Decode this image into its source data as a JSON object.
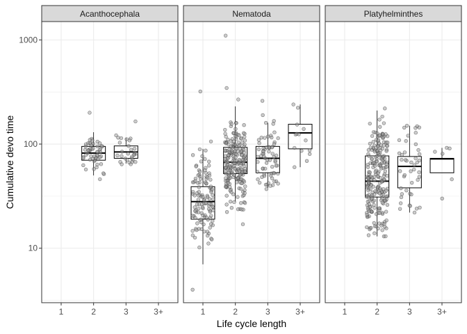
{
  "chart_data": {
    "type": "box",
    "xlabel": "Life cycle length",
    "ylabel": "Cumulative devo time",
    "y_scale": "log10",
    "ylim": [
      3,
      1500
    ],
    "y_ticks": [
      10,
      100,
      1000
    ],
    "y_tick_labels": [
      "10",
      "100",
      "1000"
    ],
    "categories": [
      "1",
      "2",
      "3",
      "3+"
    ],
    "grid": true,
    "colors": {
      "point_fill": "#999999",
      "point_stroke": "#333333",
      "box_stroke": "#000000",
      "strip_fill": "#d9d9d9",
      "grid": "#ebebeb",
      "panel_border": "#333333"
    },
    "panels": [
      {
        "name": "Acanthocephala",
        "boxes": [
          {
            "category": "2",
            "q1": 70,
            "median": 82,
            "q3": 95,
            "whisker_low": 50,
            "whisker_high": 130,
            "n": 55,
            "min": 46,
            "max": 200
          },
          {
            "category": "3",
            "q1": 73,
            "median": 84,
            "q3": 96,
            "whisker_low": 65,
            "whisker_high": 115,
            "n": 30,
            "min": 64,
            "max": 165
          }
        ]
      },
      {
        "name": "Nematoda",
        "boxes": [
          {
            "category": "1",
            "q1": 19,
            "median": 28,
            "q3": 39,
            "whisker_low": 7,
            "whisker_high": 90,
            "n": 120,
            "min": 4,
            "max": 320
          },
          {
            "category": "2",
            "q1": 52,
            "median": 67,
            "q3": 93,
            "whisker_low": 28,
            "whisker_high": 230,
            "n": 220,
            "min": 17,
            "max": 1100
          },
          {
            "category": "3",
            "q1": 53,
            "median": 73,
            "q3": 95,
            "whisker_low": 38,
            "whisker_high": 160,
            "n": 70,
            "min": 37,
            "max": 260
          },
          {
            "category": "3+",
            "q1": 90,
            "median": 128,
            "q3": 155,
            "whisker_low": 60,
            "whisker_high": 240,
            "n": 14,
            "min": 60,
            "max": 240
          }
        ]
      },
      {
        "name": "Platyhelminthes",
        "boxes": [
          {
            "category": "2",
            "q1": 31,
            "median": 44,
            "q3": 77,
            "whisker_low": 13,
            "whisker_high": 210,
            "n": 230,
            "min": 13,
            "max": 220
          },
          {
            "category": "3",
            "q1": 38,
            "median": 61,
            "q3": 76,
            "whisker_low": 22,
            "whisker_high": 150,
            "n": 45,
            "min": 22,
            "max": 150
          },
          {
            "category": "3+",
            "q1": 53,
            "median": 72,
            "q3": 73,
            "whisker_low": 53,
            "whisker_high": 92,
            "n": 6,
            "min": 30,
            "max": 92
          }
        ]
      }
    ]
  }
}
